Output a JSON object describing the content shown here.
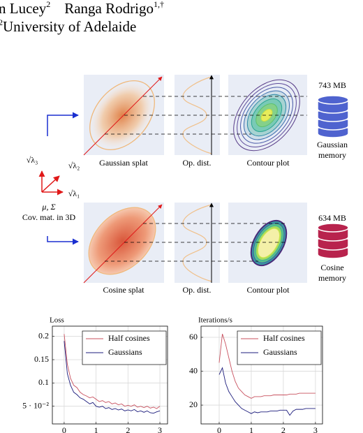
{
  "header": {
    "author_fragment": "n Lucey",
    "author_fragment_mark": "2",
    "author": "Ranga Rodrigo",
    "author_mark": "1,†",
    "affiliation_mark": "2",
    "affiliation": "University of Adelaide"
  },
  "figure": {
    "top_row": {
      "panels": [
        "Gaussian splat",
        "Op. dist.",
        "Contour plot"
      ],
      "memory": "743 MB",
      "store": [
        "Gaussian",
        "memory"
      ]
    },
    "bottom_row": {
      "panels": [
        "Cosine splat",
        "Op. dist.",
        "Contour plot"
      ],
      "memory": "634 MB",
      "store": [
        "Cosine",
        "memory"
      ]
    },
    "axes": {
      "lambda3": "√λ₃",
      "lambda2": "√λ₂",
      "lambda1": "√λ₁",
      "params": "μ, Σ",
      "caption": "Cov. mat. in 3D"
    }
  },
  "chart_data": [
    {
      "type": "line",
      "title": "Loss",
      "x": [
        0,
        0.1,
        0.2,
        0.3,
        0.4,
        0.5,
        0.6,
        0.7,
        0.8,
        0.9,
        1,
        1.1,
        1.2,
        1.3,
        1.4,
        1.5,
        1.6,
        1.7,
        1.8,
        1.9,
        2,
        2.1,
        2.2,
        2.3,
        2.4,
        2.5,
        2.6,
        2.7,
        2.8,
        2.9,
        3
      ],
      "series": [
        {
          "name": "Half cosines",
          "color": "#c8505e",
          "values": [
            0.205,
            0.14,
            0.11,
            0.095,
            0.09,
            0.08,
            0.075,
            0.072,
            0.068,
            0.07,
            0.065,
            0.06,
            0.062,
            0.058,
            0.06,
            0.055,
            0.057,
            0.053,
            0.055,
            0.05,
            0.052,
            0.05,
            0.053,
            0.048,
            0.05,
            0.047,
            0.05,
            0.046,
            0.048,
            0.045,
            0.05
          ]
        },
        {
          "name": "Gaussians",
          "color": "#1c1c7c",
          "values": [
            0.19,
            0.12,
            0.095,
            0.08,
            0.075,
            0.068,
            0.065,
            0.06,
            0.055,
            0.058,
            0.05,
            0.048,
            0.05,
            0.045,
            0.047,
            0.043,
            0.045,
            0.042,
            0.044,
            0.04,
            0.042,
            0.04,
            0.043,
            0.038,
            0.04,
            0.037,
            0.04,
            0.036,
            0.035,
            0.038,
            0.04
          ]
        }
      ],
      "xlim": [
        -0.37,
        3.24
      ],
      "xticks": [
        0,
        1,
        2,
        3
      ],
      "ylim": [
        0.012,
        0.222
      ],
      "yticks": [
        {
          "value": 0.05,
          "label": "5 · 10⁻²"
        },
        0.1,
        0.15,
        0.2
      ],
      "grid": true,
      "legend": "upper right"
    },
    {
      "type": "line",
      "title": "Iterations/s",
      "x": [
        0,
        0.1,
        0.2,
        0.3,
        0.4,
        0.5,
        0.6,
        0.7,
        0.8,
        0.9,
        1,
        1.1,
        1.2,
        1.3,
        1.4,
        1.5,
        1.6,
        1.7,
        1.8,
        1.9,
        2,
        2.1,
        2.2,
        2.3,
        2.4,
        2.5,
        2.6,
        2.7,
        2.8,
        2.9,
        3
      ],
      "series": [
        {
          "name": "Half cosines",
          "color": "#c8505e",
          "values": [
            45,
            62,
            56,
            48,
            40,
            34,
            30,
            28,
            26,
            25,
            24,
            25,
            25,
            25,
            25.5,
            25.5,
            25.5,
            26,
            26,
            26,
            26,
            26,
            26.5,
            26.5,
            26.5,
            27,
            27,
            27,
            27,
            27,
            27
          ]
        },
        {
          "name": "Gaussians",
          "color": "#1c1c7c",
          "values": [
            38,
            42,
            33,
            28,
            25,
            22,
            20,
            18,
            17,
            16,
            15,
            16,
            15.5,
            16,
            16,
            16,
            16.5,
            16.5,
            16.5,
            17,
            17,
            17,
            14,
            16.5,
            17.5,
            17.5,
            17.5,
            18,
            18,
            18,
            18
          ]
        }
      ],
      "xlim": [
        -0.565,
        3.22
      ],
      "xticks": [
        0,
        1,
        2,
        3
      ],
      "ylim": [
        8.9,
        66.6
      ],
      "yticks": [
        20,
        40,
        60
      ],
      "grid": true,
      "legend": "upper right"
    }
  ]
}
